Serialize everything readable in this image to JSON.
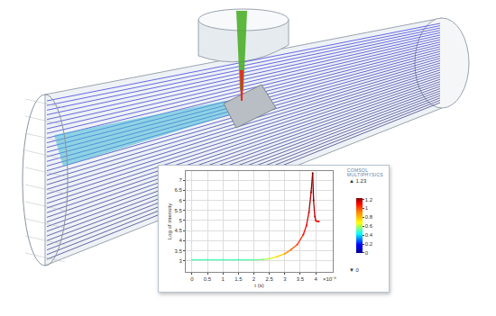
{
  "chart_data": {
    "type": "line",
    "x_label": "t (s)",
    "y_label": "Log of intensity",
    "x_multiplier": "×10⁻⁹",
    "x": [
      0,
      0.5,
      1,
      1.5,
      2,
      2.3,
      2.5,
      2.7,
      3,
      3.2,
      3.4,
      3.6,
      3.7,
      3.78,
      3.85,
      3.9,
      3.93,
      3.97,
      4,
      4.05,
      4.1
    ],
    "values": [
      3.05,
      3.05,
      3.05,
      3.05,
      3.05,
      3.07,
      3.1,
      3.18,
      3.35,
      3.55,
      3.8,
      4.3,
      4.75,
      5.4,
      6.4,
      7.35,
      6.0,
      5.2,
      5.0,
      4.95,
      4.95
    ],
    "color_values": [
      0.5,
      0.5,
      0.5,
      0.5,
      0.52,
      0.56,
      0.62,
      0.7,
      0.85,
      0.95,
      1.02,
      1.08,
      1.12,
      1.16,
      1.2,
      1.23,
      1.2,
      1.15,
      1.12,
      1.1,
      1.1
    ],
    "xlim": [
      -0.2,
      4.55
    ],
    "xticks": [
      0,
      0.5,
      1,
      1.5,
      2,
      2.5,
      3,
      3.5,
      4
    ],
    "ylim": [
      2.45,
      7.45
    ],
    "yticks": [
      3,
      3.5,
      4,
      4.5,
      5,
      5.5,
      6,
      6.5,
      7
    ],
    "colorbar": {
      "range": [
        0,
        1.23
      ],
      "ticks": [
        0,
        0.2,
        0.4,
        0.6,
        0.8,
        1,
        1.2
      ],
      "max_label": "▲ 1.23",
      "min_label": "▼ 0"
    },
    "grid": true
  },
  "logo": [
    "COMSOL",
    "MULTIPHYSICS"
  ]
}
